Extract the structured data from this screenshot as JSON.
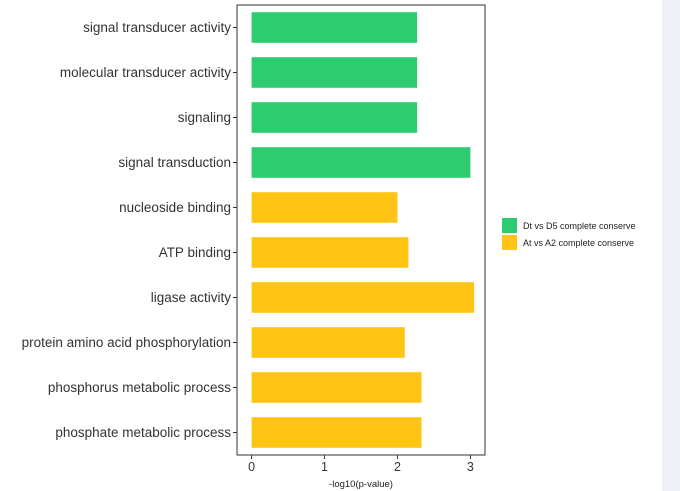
{
  "chart_data": {
    "type": "bar",
    "orientation": "horizontal",
    "categories": [
      "signal transducer activity",
      "molecular transducer activity",
      "signaling",
      "signal transduction",
      "nucleoside binding",
      "ATP binding",
      "ligase activity",
      "protein amino acid phosphorylation",
      "phosphorus metabolic process",
      "phosphate metabolic process"
    ],
    "values": [
      2.27,
      2.27,
      2.27,
      3.0,
      2.0,
      2.15,
      3.05,
      2.1,
      2.33,
      2.33
    ],
    "groups": [
      "Dt vs D5 complete conserve",
      "Dt vs D5 complete conserve",
      "Dt vs D5 complete conserve",
      "Dt vs D5 complete conserve",
      "At vs A2 complete conserve",
      "At vs A2 complete conserve",
      "At vs A2 complete conserve",
      "At vs A2 complete conserve",
      "At vs A2 complete conserve",
      "At vs A2 complete conserve"
    ],
    "legend": [
      {
        "name": "Dt vs D5 complete conserve",
        "color": "#2ecc71"
      },
      {
        "name": "At vs A2 complete conserve",
        "color": "#ffc414"
      }
    ],
    "xlabel": "-log10(p-value)",
    "ylabel": "",
    "title": "",
    "xlim": [
      -0.2,
      3.2
    ],
    "xticks": [
      0,
      1,
      2,
      3
    ],
    "legend_position": "right",
    "grid": false
  }
}
